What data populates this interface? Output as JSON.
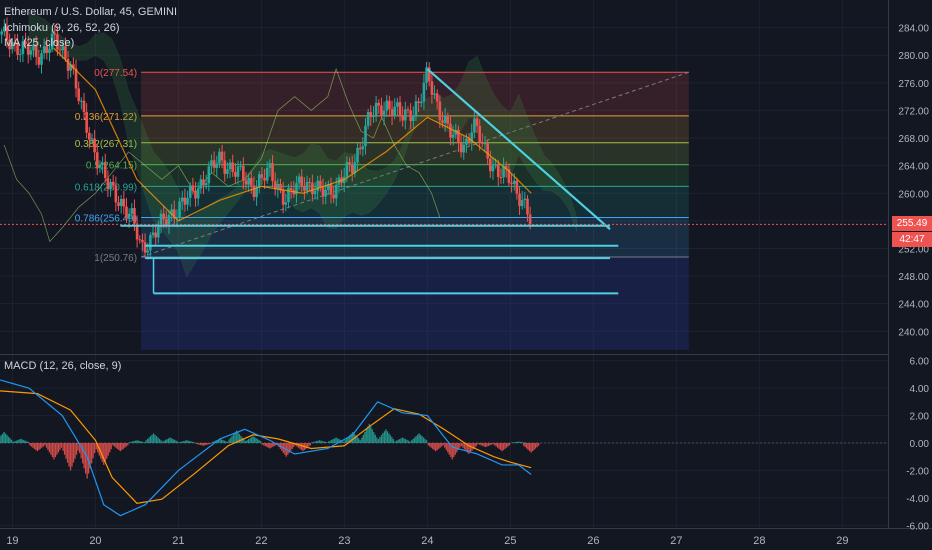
{
  "header": {
    "symbol_line": "Ethereum / U.S. Dollar, 45, GEMINI",
    "indicator_1": "Ichimoku (9, 26, 52, 26)",
    "indicator_2": "MA (25, close)",
    "macd_label": "MACD (12, 26, close, 9)"
  },
  "last_price": {
    "value": "255.49",
    "countdown": "42:47",
    "color": "#ef5350"
  },
  "chart_data": [
    {
      "type": "candlestick",
      "title": "Ethereum / U.S. Dollar, 45, GEMINI",
      "y_ticks": [
        "284.00",
        "280.00",
        "276.00",
        "272.00",
        "268.00",
        "264.00",
        "260.00",
        "256.00",
        "252.00",
        "248.00",
        "244.00",
        "240.00"
      ],
      "x_ticks": [
        "19",
        "20",
        "21",
        "22",
        "23",
        "24",
        "25",
        "26",
        "27",
        "28",
        "29"
      ],
      "ylim": [
        237,
        288
      ],
      "fib_retracement": [
        {
          "level": "0",
          "price": 277.54,
          "label": "0(277.54)",
          "color": "#ef5350"
        },
        {
          "level": "0.236",
          "price": 271.22,
          "label": "0.236(271.22)",
          "color": "#e0a040"
        },
        {
          "level": "0.382",
          "price": 267.31,
          "label": "0.382(267.31)",
          "color": "#a5c44a"
        },
        {
          "level": "0.5",
          "price": 264.15,
          "label": "0.5(264.15)",
          "color": "#4caf50"
        },
        {
          "level": "0.618",
          "price": 260.99,
          "label": "0.618(260.99)",
          "color": "#26a69a"
        },
        {
          "level": "0.786",
          "price": 256.49,
          "label": "0.786(256.49)",
          "color": "#42a5f5"
        },
        {
          "level": "1",
          "price": 250.76,
          "label": "1(250.76)",
          "color": "#787b86"
        }
      ],
      "trendline_down": {
        "from": {
          "x": 24.0,
          "y": 278.0
        },
        "to": {
          "x": 26.2,
          "y": 254.8
        },
        "color": "#4dd0e1"
      },
      "horizontal_levels": [
        {
          "price": 255.3,
          "from": 20.3,
          "to": 26.2,
          "color": "#4dd0e1"
        },
        {
          "price": 252.4,
          "from": 20.6,
          "to": 26.3,
          "color": "#4dd0e1"
        },
        {
          "price": 250.6,
          "from": 20.6,
          "to": 26.2,
          "color": "#4dd0e1"
        },
        {
          "price": 245.5,
          "from": 20.7,
          "to": 26.3,
          "color": "#4dd0e1"
        }
      ],
      "close_series": [
        {
          "x": 18.85,
          "y": 283
        },
        {
          "x": 19.1,
          "y": 281
        },
        {
          "x": 19.3,
          "y": 280
        },
        {
          "x": 19.5,
          "y": 282
        },
        {
          "x": 19.7,
          "y": 279
        },
        {
          "x": 19.85,
          "y": 271
        },
        {
          "x": 20.0,
          "y": 266
        },
        {
          "x": 20.15,
          "y": 261
        },
        {
          "x": 20.3,
          "y": 259
        },
        {
          "x": 20.45,
          "y": 256
        },
        {
          "x": 20.55,
          "y": 252
        },
        {
          "x": 20.7,
          "y": 254
        },
        {
          "x": 20.9,
          "y": 257
        },
        {
          "x": 21.1,
          "y": 259
        },
        {
          "x": 21.3,
          "y": 262
        },
        {
          "x": 21.5,
          "y": 265
        },
        {
          "x": 21.7,
          "y": 263
        },
        {
          "x": 21.9,
          "y": 261
        },
        {
          "x": 22.1,
          "y": 263
        },
        {
          "x": 22.3,
          "y": 259
        },
        {
          "x": 22.5,
          "y": 262
        },
        {
          "x": 22.7,
          "y": 260
        },
        {
          "x": 22.9,
          "y": 261
        },
        {
          "x": 23.1,
          "y": 264
        },
        {
          "x": 23.3,
          "y": 271
        },
        {
          "x": 23.5,
          "y": 273
        },
        {
          "x": 23.7,
          "y": 271
        },
        {
          "x": 23.9,
          "y": 273
        },
        {
          "x": 24.0,
          "y": 277
        },
        {
          "x": 24.15,
          "y": 272
        },
        {
          "x": 24.3,
          "y": 268
        },
        {
          "x": 24.45,
          "y": 267
        },
        {
          "x": 24.55,
          "y": 270
        },
        {
          "x": 24.7,
          "y": 266
        },
        {
          "x": 24.85,
          "y": 263
        },
        {
          "x": 25.0,
          "y": 262
        },
        {
          "x": 25.15,
          "y": 259
        },
        {
          "x": 25.25,
          "y": 255.5
        }
      ],
      "ma_series": [
        {
          "x": 19.5,
          "y": 281
        },
        {
          "x": 20.0,
          "y": 275
        },
        {
          "x": 20.5,
          "y": 262
        },
        {
          "x": 21.0,
          "y": 256
        },
        {
          "x": 21.5,
          "y": 259
        },
        {
          "x": 22.0,
          "y": 261
        },
        {
          "x": 22.5,
          "y": 260
        },
        {
          "x": 23.0,
          "y": 262
        },
        {
          "x": 23.5,
          "y": 266
        },
        {
          "x": 24.0,
          "y": 271
        },
        {
          "x": 24.5,
          "y": 268
        },
        {
          "x": 25.0,
          "y": 263
        },
        {
          "x": 25.25,
          "y": 260
        }
      ]
    },
    {
      "type": "bar",
      "title": "MACD (12, 26, close, 9)",
      "y_ticks": [
        "6.00",
        "4.00",
        "2.00",
        "0.00",
        "-2.00",
        "-4.00",
        "-6.00"
      ],
      "ylim": [
        -6.2,
        6.2
      ],
      "histogram": [
        {
          "x": 18.9,
          "y": 0.8
        },
        {
          "x": 19.1,
          "y": 0.3
        },
        {
          "x": 19.3,
          "y": -0.6
        },
        {
          "x": 19.5,
          "y": -1.2
        },
        {
          "x": 19.7,
          "y": -2.0
        },
        {
          "x": 19.9,
          "y": -2.6
        },
        {
          "x": 20.1,
          "y": -1.6
        },
        {
          "x": 20.3,
          "y": -0.6
        },
        {
          "x": 20.5,
          "y": 0.2
        },
        {
          "x": 20.7,
          "y": 0.7
        },
        {
          "x": 20.9,
          "y": 0.4
        },
        {
          "x": 21.1,
          "y": 0.2
        },
        {
          "x": 21.3,
          "y": -0.2
        },
        {
          "x": 21.5,
          "y": 0.3
        },
        {
          "x": 21.7,
          "y": 0.9
        },
        {
          "x": 21.9,
          "y": 0.5
        },
        {
          "x": 22.1,
          "y": -0.4
        },
        {
          "x": 22.3,
          "y": -1.0
        },
        {
          "x": 22.5,
          "y": -0.6
        },
        {
          "x": 22.7,
          "y": 0.2
        },
        {
          "x": 22.9,
          "y": 0.4
        },
        {
          "x": 23.1,
          "y": 0.8
        },
        {
          "x": 23.3,
          "y": 1.4
        },
        {
          "x": 23.5,
          "y": 1.0
        },
        {
          "x": 23.7,
          "y": 0.4
        },
        {
          "x": 23.9,
          "y": 0.7
        },
        {
          "x": 24.1,
          "y": -0.6
        },
        {
          "x": 24.3,
          "y": -1.2
        },
        {
          "x": 24.5,
          "y": -0.8
        },
        {
          "x": 24.7,
          "y": -0.3
        },
        {
          "x": 24.9,
          "y": -0.6
        },
        {
          "x": 25.1,
          "y": 0.1
        },
        {
          "x": 25.25,
          "y": -0.7
        }
      ],
      "macd_line": [
        {
          "x": 18.85,
          "y": 4.6
        },
        {
          "x": 19.2,
          "y": 4.0
        },
        {
          "x": 19.6,
          "y": 2.0
        },
        {
          "x": 19.9,
          "y": -1.0
        },
        {
          "x": 20.1,
          "y": -4.5
        },
        {
          "x": 20.3,
          "y": -5.3
        },
        {
          "x": 20.6,
          "y": -4.5
        },
        {
          "x": 21.0,
          "y": -2.0
        },
        {
          "x": 21.5,
          "y": 0.3
        },
        {
          "x": 21.8,
          "y": 1.0
        },
        {
          "x": 22.1,
          "y": 0.2
        },
        {
          "x": 22.4,
          "y": -0.8
        },
        {
          "x": 22.8,
          "y": -0.4
        },
        {
          "x": 23.1,
          "y": 0.6
        },
        {
          "x": 23.4,
          "y": 3.0
        },
        {
          "x": 23.7,
          "y": 2.2
        },
        {
          "x": 24.0,
          "y": 2.0
        },
        {
          "x": 24.3,
          "y": -0.3
        },
        {
          "x": 24.6,
          "y": -0.8
        },
        {
          "x": 24.9,
          "y": -1.6
        },
        {
          "x": 25.1,
          "y": -1.6
        },
        {
          "x": 25.25,
          "y": -2.3
        }
      ],
      "signal_line": [
        {
          "x": 18.85,
          "y": 3.8
        },
        {
          "x": 19.3,
          "y": 3.6
        },
        {
          "x": 19.7,
          "y": 2.4
        },
        {
          "x": 20.0,
          "y": 0.2
        },
        {
          "x": 20.2,
          "y": -2.5
        },
        {
          "x": 20.5,
          "y": -4.4
        },
        {
          "x": 20.8,
          "y": -4.1
        },
        {
          "x": 21.2,
          "y": -2.2
        },
        {
          "x": 21.6,
          "y": -0.2
        },
        {
          "x": 21.9,
          "y": 0.6
        },
        {
          "x": 22.2,
          "y": 0.3
        },
        {
          "x": 22.6,
          "y": -0.4
        },
        {
          "x": 23.0,
          "y": -0.2
        },
        {
          "x": 23.3,
          "y": 1.2
        },
        {
          "x": 23.6,
          "y": 2.5
        },
        {
          "x": 23.9,
          "y": 2.1
        },
        {
          "x": 24.2,
          "y": 1.0
        },
        {
          "x": 24.5,
          "y": -0.2
        },
        {
          "x": 24.8,
          "y": -1.0
        },
        {
          "x": 25.0,
          "y": -1.4
        },
        {
          "x": 25.25,
          "y": -1.8
        }
      ],
      "colors": {
        "macd": "#2196f3",
        "signal": "#ff9800",
        "hist_pos": "#26a69a",
        "hist_neg": "#ef5350"
      }
    }
  ]
}
